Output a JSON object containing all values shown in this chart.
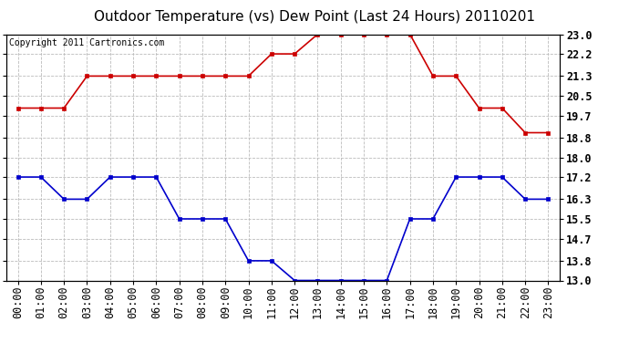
{
  "title": "Outdoor Temperature (vs) Dew Point (Last 24 Hours) 20110201",
  "copyright_text": "Copyright 2011 Cartronics.com",
  "x_labels": [
    "00:00",
    "01:00",
    "02:00",
    "03:00",
    "04:00",
    "05:00",
    "06:00",
    "07:00",
    "08:00",
    "09:00",
    "10:00",
    "11:00",
    "12:00",
    "13:00",
    "14:00",
    "15:00",
    "16:00",
    "17:00",
    "18:00",
    "19:00",
    "20:00",
    "21:00",
    "22:00",
    "23:00"
  ],
  "temp_data": [
    20.0,
    20.0,
    20.0,
    21.3,
    21.3,
    21.3,
    21.3,
    21.3,
    21.3,
    21.3,
    21.3,
    22.2,
    22.2,
    23.0,
    23.0,
    23.0,
    23.0,
    23.0,
    21.3,
    21.3,
    20.0,
    20.0,
    19.0,
    19.0
  ],
  "dew_data": [
    17.2,
    17.2,
    16.3,
    16.3,
    17.2,
    17.2,
    17.2,
    15.5,
    15.5,
    15.5,
    13.8,
    13.8,
    13.0,
    13.0,
    13.0,
    13.0,
    13.0,
    15.5,
    15.5,
    17.2,
    17.2,
    17.2,
    16.3,
    16.3
  ],
  "temp_color": "#cc0000",
  "dew_color": "#0000cc",
  "ylim": [
    13.0,
    23.0
  ],
  "yticks": [
    13.0,
    13.8,
    14.7,
    15.5,
    16.3,
    17.2,
    18.0,
    18.8,
    19.7,
    20.5,
    21.3,
    22.2,
    23.0
  ],
  "ytick_labels": [
    "13.0",
    "13.8",
    "14.7",
    "15.5",
    "16.3",
    "17.2",
    "18.0",
    "18.8",
    "19.7",
    "20.5",
    "21.3",
    "22.2",
    "23.0"
  ],
  "background_color": "#ffffff",
  "grid_color": "#bbbbbb",
  "title_fontsize": 11,
  "copyright_fontsize": 7,
  "tick_fontsize": 8.5,
  "marker": "s",
  "markersize": 3.0,
  "linewidth": 1.2
}
